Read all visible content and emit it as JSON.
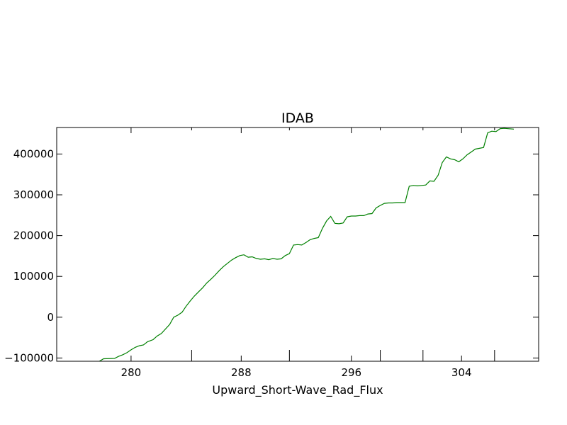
{
  "chart_data": {
    "type": "line",
    "title": "IDAB",
    "xlabel": "Upward_Short-Wave_Rad_Flux",
    "ylabel": "",
    "xlim": [
      274.6,
      309.6
    ],
    "ylim": [
      -108000,
      465000
    ],
    "xticks": [
      {
        "value": 280,
        "label": "280"
      },
      {
        "value": 288,
        "label": "288"
      },
      {
        "value": 296,
        "label": "296"
      },
      {
        "value": 304,
        "label": "304"
      }
    ],
    "minor_xticks": [
      284.4,
      291.5,
      298.1,
      301.2,
      306.4
    ],
    "yticks": [
      {
        "value": -100000,
        "label": "−100000"
      },
      {
        "value": 0,
        "label": "0"
      },
      {
        "value": 100000,
        "label": "100000"
      },
      {
        "value": 200000,
        "label": "200000"
      },
      {
        "value": 300000,
        "label": "300000"
      },
      {
        "value": 400000,
        "label": "400000"
      }
    ],
    "grid": false,
    "legend": "none",
    "series": [
      {
        "color": "#008000",
        "x": [
          276.2,
          277.7,
          278.0,
          278.8,
          279.1,
          279.4,
          279.7,
          280.0,
          280.3,
          280.6,
          280.9,
          281.2,
          281.6,
          281.9,
          282.2,
          282.8,
          283.1,
          283.4,
          283.7,
          284.0,
          284.3,
          284.6,
          284.9,
          285.2,
          285.5,
          285.8,
          286.1,
          286.4,
          286.7,
          287.0,
          287.3,
          287.6,
          287.9,
          288.2,
          288.5,
          288.8,
          289.1,
          289.4,
          289.7,
          290.0,
          290.3,
          290.6,
          290.9,
          291.2,
          291.5,
          291.8,
          292.1,
          292.4,
          292.7,
          293.0,
          293.3,
          293.6,
          293.9,
          294.2,
          294.5,
          294.8,
          295.1,
          295.4,
          295.7,
          296.0,
          296.3,
          296.6,
          296.9,
          297.2,
          297.5,
          297.8,
          298.1,
          298.4,
          298.7,
          299.0,
          299.3,
          299.6,
          299.9,
          300.2,
          300.5,
          300.8,
          301.1,
          301.4,
          301.7,
          302.0,
          302.3,
          302.6,
          302.9,
          303.2,
          303.5,
          303.8,
          304.1,
          304.4,
          304.7,
          305.0,
          305.3,
          305.6,
          305.9,
          306.2,
          306.5,
          306.8,
          307.1,
          307.4,
          307.8
        ],
        "y": [
          -110000,
          -108000,
          -102000,
          -101000,
          -96000,
          -92000,
          -87000,
          -80000,
          -74000,
          -70000,
          -68000,
          -60000,
          -55000,
          -46000,
          -40000,
          -18000,
          0,
          5000,
          12000,
          27000,
          40000,
          52000,
          62000,
          72000,
          84000,
          93000,
          103000,
          114000,
          124000,
          132000,
          140000,
          146000,
          151000,
          153000,
          147000,
          148000,
          144000,
          142000,
          143000,
          141000,
          144000,
          142000,
          143000,
          151000,
          156000,
          177000,
          178000,
          177000,
          183000,
          190000,
          193000,
          195000,
          218000,
          236000,
          247000,
          230000,
          229000,
          231000,
          246000,
          248000,
          248000,
          249000,
          249000,
          253000,
          254000,
          268000,
          274000,
          279000,
          280000,
          280000,
          281000,
          281000,
          281000,
          321000,
          323000,
          322000,
          323000,
          324000,
          334000,
          333000,
          348000,
          379000,
          393000,
          388000,
          386000,
          381000,
          388000,
          398000,
          405000,
          412000,
          414000,
          416000,
          452000,
          456000,
          455000,
          462000,
          463000,
          462000,
          461000
        ]
      }
    ]
  }
}
